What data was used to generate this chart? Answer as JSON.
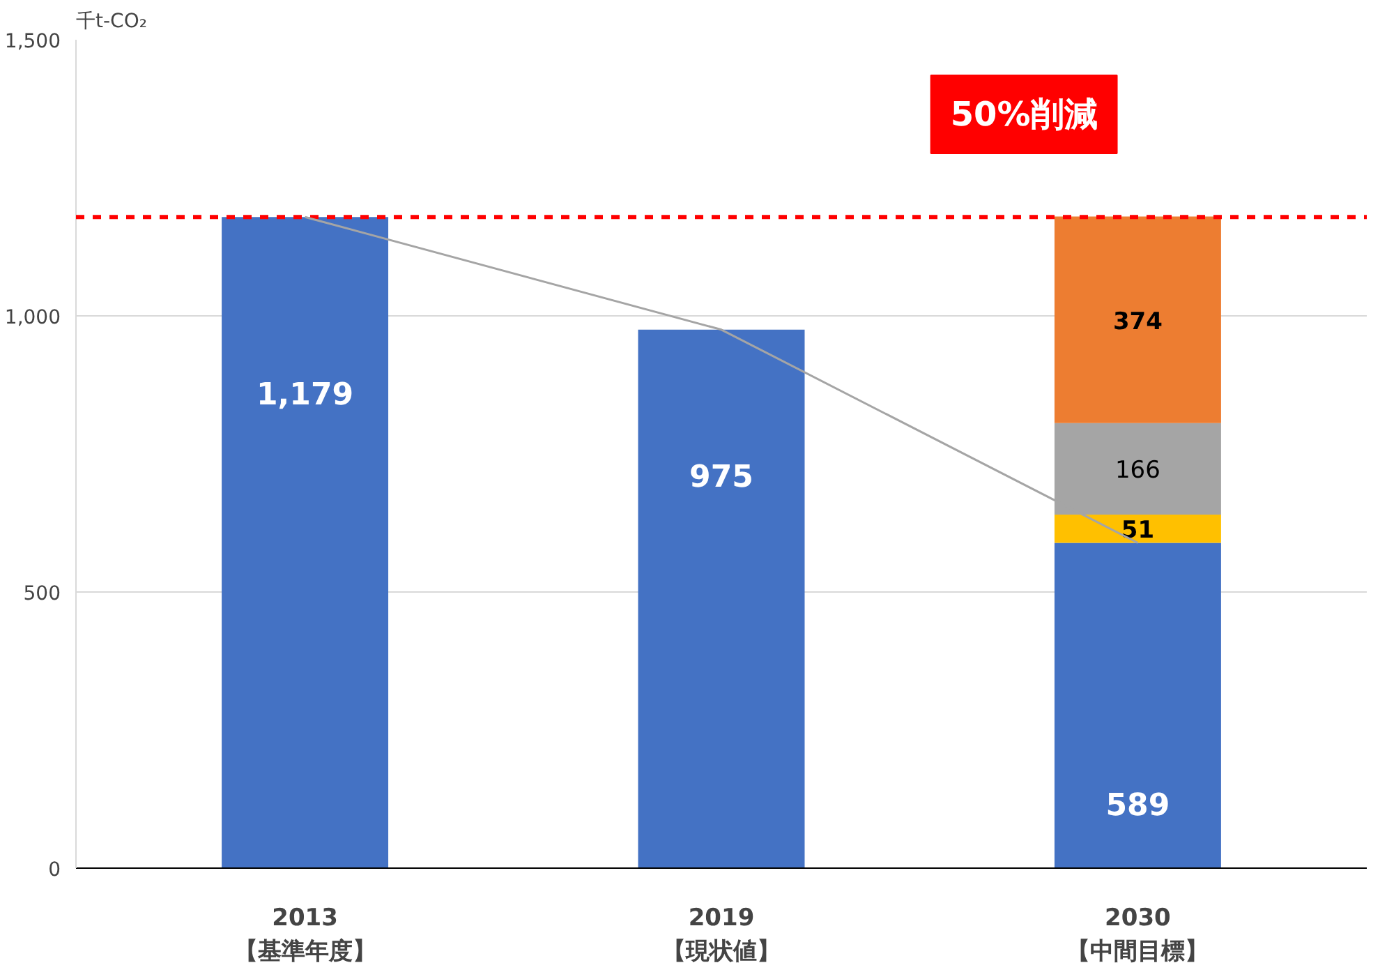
{
  "chart_data": {
    "type": "bar",
    "stacked": true,
    "ylabel": "千t-CO₂",
    "categories": [
      "2013\n【基準年度】",
      "2019\n【現状値】",
      "2030\n【中間目標】"
    ],
    "series": [
      {
        "color": "#4472c4",
        "values": [
          1179,
          975,
          589
        ],
        "value_labels": [
          "1,179",
          "975",
          "589"
        ]
      },
      {
        "color": "#ffc000",
        "values": [
          null,
          null,
          51
        ],
        "value_labels": [
          null,
          null,
          "51"
        ]
      },
      {
        "color": "#a5a5a5",
        "values": [
          null,
          null,
          166
        ],
        "value_labels": [
          null,
          null,
          "166"
        ]
      },
      {
        "color": "#ed7d31",
        "values": [
          null,
          null,
          374
        ],
        "value_labels": [
          null,
          null,
          "374"
        ]
      },
      {
        "type": "line",
        "color": "#a5a5a5",
        "values": [
          1179,
          975,
          589
        ]
      }
    ],
    "ylim": [
      0,
      1500
    ],
    "yticks": [
      0,
      500,
      {
        "value": 1000,
        "label": "1,000"
      },
      {
        "value": 1500,
        "label": "1,500"
      }
    ],
    "grid": "y",
    "ref_lines": [
      {
        "axis": "y",
        "value": 1179,
        "color": "#ff0000",
        "line_style": "dashed"
      }
    ],
    "annotations": [
      "50%削減"
    ]
  }
}
